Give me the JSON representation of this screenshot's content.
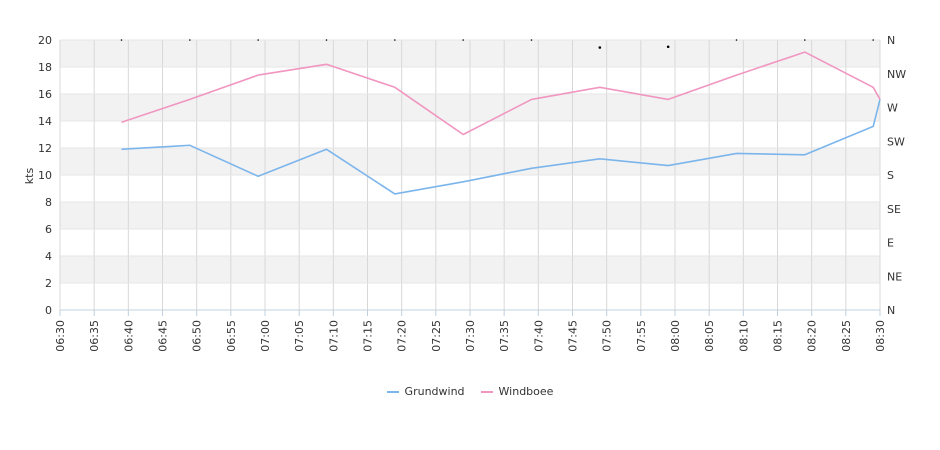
{
  "chart_data": {
    "type": "line",
    "ylabel": "kts",
    "ylim": [
      0,
      20
    ],
    "y_ticks": [
      "0",
      "2",
      "4",
      "6",
      "8",
      "10",
      "12",
      "14",
      "16",
      "18",
      "20"
    ],
    "y2_ticks": [
      "N",
      "NE",
      "E",
      "SE",
      "S",
      "SW",
      "W",
      "NW",
      "N"
    ],
    "x_ticks": [
      "06:30",
      "06:35",
      "06:40",
      "06:45",
      "06:50",
      "06:55",
      "07:00",
      "07:05",
      "07:10",
      "07:15",
      "07:20",
      "07:25",
      "07:30",
      "07:35",
      "07:40",
      "07:45",
      "07:50",
      "07:55",
      "08:00",
      "08:05",
      "08:10",
      "08:15",
      "08:20",
      "08:25",
      "08:30"
    ],
    "xlim": [
      "06:30",
      "08:30"
    ],
    "grid": true,
    "legend_position": "bottom",
    "series": [
      {
        "name": "Grundwind",
        "color": "#7cb5ec",
        "points": [
          [
            "06:39",
            11.9
          ],
          [
            "06:49",
            12.2
          ],
          [
            "06:59",
            9.9
          ],
          [
            "07:09",
            11.9
          ],
          [
            "07:19",
            8.6
          ],
          [
            "07:29",
            9.5
          ],
          [
            "07:39",
            10.5
          ],
          [
            "07:49",
            11.2
          ],
          [
            "07:59",
            10.7
          ],
          [
            "08:09",
            11.6
          ],
          [
            "08:19",
            11.5
          ],
          [
            "08:29",
            13.6
          ],
          [
            "08:30",
            15.6
          ]
        ]
      },
      {
        "name": "Windboee",
        "color": "#f096c0",
        "points": [
          [
            "06:39",
            13.9
          ],
          [
            "06:49",
            15.6
          ],
          [
            "06:59",
            17.4
          ],
          [
            "07:09",
            18.2
          ],
          [
            "07:19",
            16.5
          ],
          [
            "07:29",
            13.0
          ],
          [
            "07:39",
            15.6
          ],
          [
            "07:49",
            16.5
          ],
          [
            "07:59",
            15.6
          ],
          [
            "08:09",
            17.4
          ],
          [
            "08:19",
            19.1
          ],
          [
            "08:29",
            16.5
          ],
          [
            "08:30",
            15.6
          ]
        ]
      }
    ],
    "direction": {
      "points": [
        [
          "06:39",
          360
        ],
        [
          "06:49",
          360
        ],
        [
          "06:59",
          360
        ],
        [
          "07:09",
          360
        ],
        [
          "07:19",
          360
        ],
        [
          "07:29",
          360
        ],
        [
          "07:39",
          360
        ],
        [
          "07:49",
          350
        ],
        [
          "07:59",
          351
        ],
        [
          "08:09",
          360
        ],
        [
          "08:19",
          360
        ],
        [
          "08:29",
          360
        ]
      ]
    }
  }
}
